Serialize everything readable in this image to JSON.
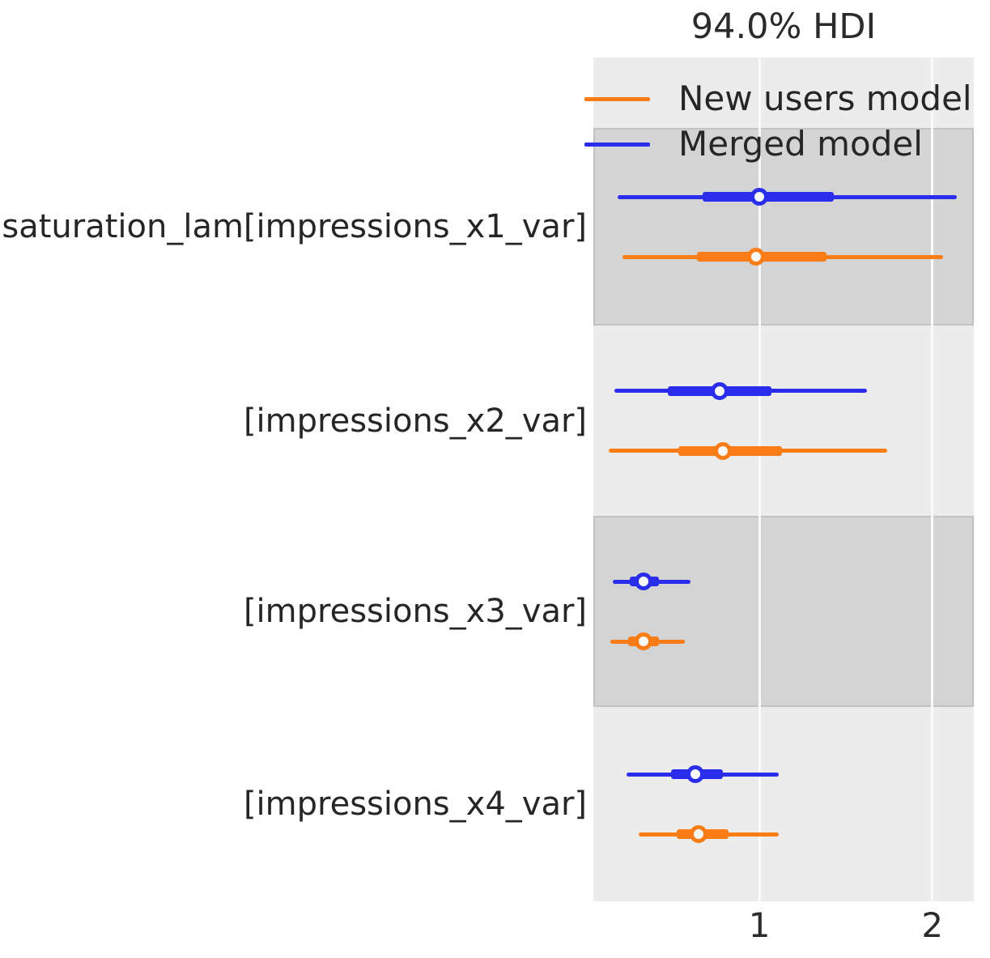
{
  "title": "94.0% HDI",
  "legend": {
    "entries": [
      {
        "label": "New users model",
        "color": "#fa7c17"
      },
      {
        "label": "Merged model",
        "color": "#2a2eec"
      }
    ]
  },
  "colors": {
    "merged_model": "#2a2eec",
    "new_users_model": "#fa7c17",
    "band_light": "#ececec",
    "band_dark": "#d4d4d4",
    "gridline": "#fafafa",
    "text": "#262626"
  },
  "chart_data": {
    "type": "forest",
    "title": "94.0% HDI",
    "hdi_probability": "94.0%",
    "xlim": [
      0.04,
      2.24
    ],
    "xticks": [
      1,
      2
    ],
    "grid": "vertical white gridlines at ticks",
    "legend_position": "upper left, no frame",
    "note": "each interval: thin line = 94% HDI, thick line = interquartile range, circle = point estimate",
    "rows": [
      {
        "label": "saturation_lam[impressions_x1_var]",
        "series": [
          {
            "model": "Merged model",
            "color": "#2a2eec",
            "hdi": [
              0.18,
              2.14
            ],
            "quartile": [
              0.67,
              1.43
            ],
            "median": 1.0
          },
          {
            "model": "New users model",
            "color": "#fa7c17",
            "hdi": [
              0.21,
              2.06
            ],
            "quartile": [
              0.64,
              1.39
            ],
            "median": 0.98
          }
        ]
      },
      {
        "label": "[impressions_x2_var]",
        "series": [
          {
            "model": "Merged model",
            "color": "#2a2eec",
            "hdi": [
              0.16,
              1.62
            ],
            "quartile": [
              0.47,
              1.07
            ],
            "median": 0.77
          },
          {
            "model": "New users model",
            "color": "#fa7c17",
            "hdi": [
              0.13,
              1.74
            ],
            "quartile": [
              0.53,
              1.13
            ],
            "median": 0.79
          }
        ]
      },
      {
        "label": "[impressions_x3_var]",
        "series": [
          {
            "model": "Merged model",
            "color": "#2a2eec",
            "hdi": [
              0.15,
              0.6
            ],
            "quartile": [
              0.25,
              0.42
            ],
            "median": 0.33
          },
          {
            "model": "New users model",
            "color": "#fa7c17",
            "hdi": [
              0.14,
              0.57
            ],
            "quartile": [
              0.24,
              0.42
            ],
            "median": 0.33
          }
        ]
      },
      {
        "label": "[impressions_x4_var]",
        "series": [
          {
            "model": "Merged model",
            "color": "#2a2eec",
            "hdi": [
              0.23,
              1.11
            ],
            "quartile": [
              0.49,
              0.79
            ],
            "median": 0.63
          },
          {
            "model": "New users model",
            "color": "#fa7c17",
            "hdi": [
              0.3,
              1.11
            ],
            "quartile": [
              0.52,
              0.82
            ],
            "median": 0.65
          }
        ]
      }
    ]
  }
}
